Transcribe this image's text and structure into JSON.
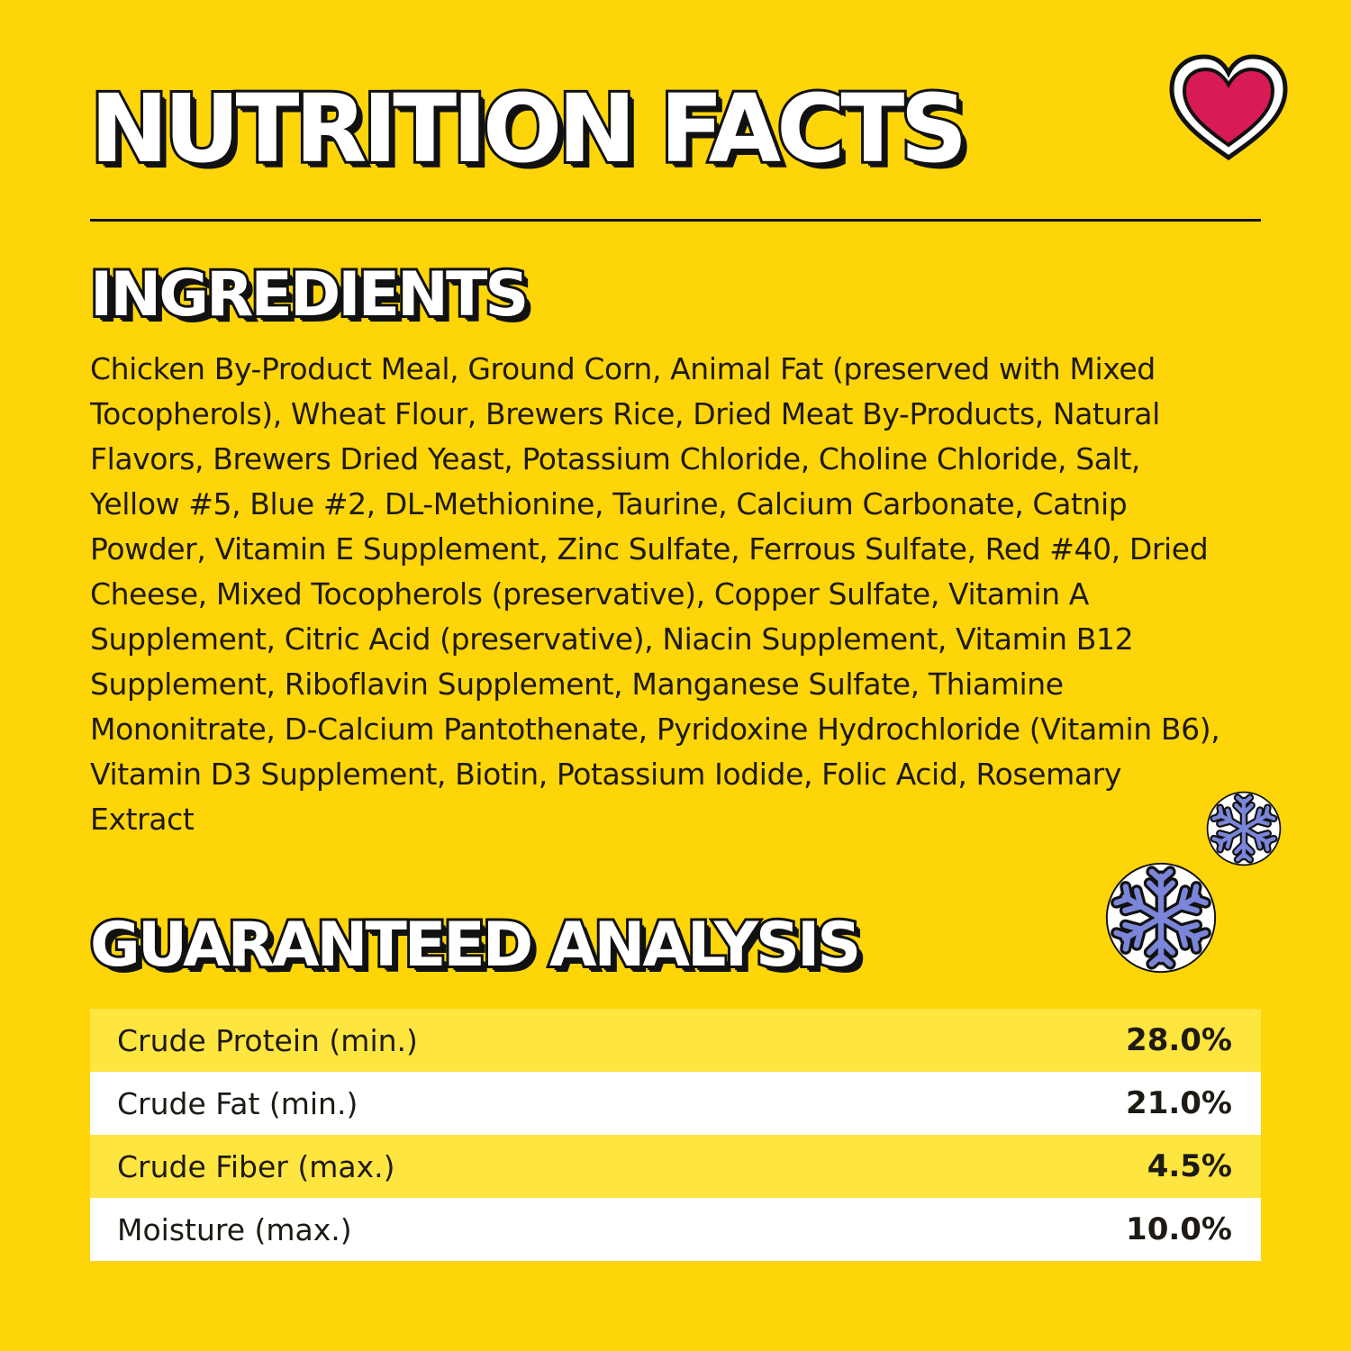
{
  "header": {
    "title": "NUTRITION FACTS"
  },
  "ingredients": {
    "heading": "INGREDIENTS",
    "text": "Chicken By-Product Meal, Ground Corn, Animal Fat (preserved with Mixed Tocopherols), Wheat Flour, Brewers Rice, Dried Meat By-Products, Natural Flavors, Brewers Dried Yeast, Potassium Chloride, Choline Chloride, Salt, Yellow #5, Blue #2, DL-Methionine, Taurine, Calcium Carbonate, Catnip Powder, Vitamin E Supplement, Zinc Sulfate, Ferrous Sulfate, Red #40, Dried Cheese, Mixed Tocopherols (preservative), Copper Sulfate, Vitamin A Supplement, Citric Acid (preservative), Niacin Supplement, Vitamin B12 Supplement, Riboflavin Supplement, Manganese Sulfate, Thiamine Mononitrate, D-Calcium Pantothenate, Pyridoxine Hydrochloride (Vitamin B6), Vitamin D3 Supplement, Biotin, Potassium Iodide, Folic Acid, Rosemary Extract"
  },
  "analysis": {
    "heading": "GUARANTEED ANALYSIS",
    "rows": [
      {
        "label": "Crude Protein (min.)",
        "value": "28.0%"
      },
      {
        "label": "Crude Fat (min.)",
        "value": "21.0%"
      },
      {
        "label": "Crude Fiber (max.)",
        "value": "4.5%"
      },
      {
        "label": "Moisture (max.)",
        "value": "10.0%"
      }
    ]
  },
  "decorations": {
    "icons": [
      "heart-icon",
      "snowflake-icon",
      "snowflake-icon"
    ]
  },
  "colors": {
    "background": "#FDD508",
    "row_shaded": "#FFE540",
    "row_plain": "#FFFFFF",
    "heart": "#D81B55",
    "snowflake": "#7B86D9",
    "text": "#1E1A14"
  }
}
